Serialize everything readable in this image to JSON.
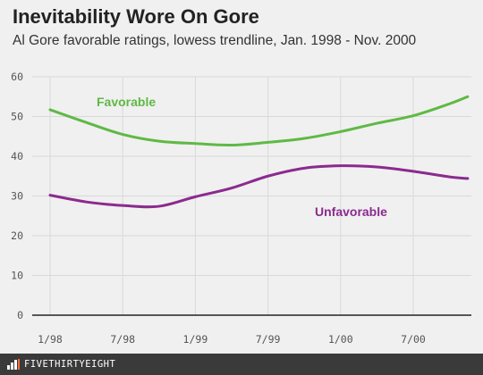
{
  "header": {
    "title": "Inevitability Wore On Gore",
    "subtitle": "Al Gore favorable ratings, lowess trendline, Jan. 1998 - Nov. 2000"
  },
  "footer": {
    "brand": "FIVETHIRTYEIGHT",
    "background": "#3a3a3a"
  },
  "chart_data": {
    "type": "line",
    "title": "Inevitability Wore On Gore",
    "subtitle": "Al Gore favorable ratings, lowess trendline, Jan. 1998 - Nov. 2000",
    "xlabel": "",
    "ylabel": "",
    "x": [
      0,
      3,
      6,
      9,
      12,
      15,
      18,
      21,
      24,
      27,
      30,
      33,
      34.5
    ],
    "x_unit": "months since Jan. 1998",
    "x_ticks": [
      {
        "value": 0,
        "label": "1/98"
      },
      {
        "value": 6,
        "label": "7/98"
      },
      {
        "value": 12,
        "label": "1/99"
      },
      {
        "value": 18,
        "label": "7/99"
      },
      {
        "value": 24,
        "label": "1/00"
      },
      {
        "value": 30,
        "label": "7/00"
      }
    ],
    "ylim": [
      0,
      60
    ],
    "y_ticks": [
      0,
      10,
      20,
      30,
      40,
      50,
      60
    ],
    "grid": true,
    "series": [
      {
        "name": "Favorable",
        "color": "#5fb945",
        "values": [
          51.7,
          48.5,
          45.5,
          43.8,
          43.2,
          42.8,
          43.5,
          44.5,
          46.2,
          48.3,
          50.2,
          53.2,
          55.0
        ]
      },
      {
        "name": "Unfavorable",
        "color": "#8b2a8f",
        "values": [
          30.2,
          28.5,
          27.6,
          27.4,
          29.8,
          32.0,
          35.0,
          37.0,
          37.6,
          37.3,
          36.2,
          34.8,
          34.4
        ]
      }
    ],
    "axis_color": "#222222",
    "grid_color": "#d9d9d9"
  }
}
